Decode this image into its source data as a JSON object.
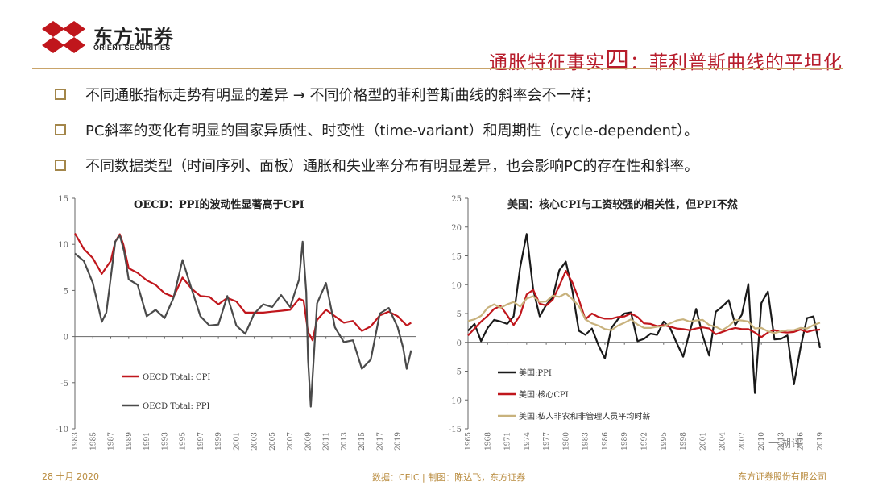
{
  "brand": {
    "name_cn": "东方证券",
    "name_en": "ORIENT SECURITIES"
  },
  "header": {
    "title_prefix": "通胀特征事实",
    "title_num": "四",
    "title_suffix": "：菲利普斯曲线的平坦化"
  },
  "bullets": [
    "不同通胀指标走势有明显的差异 → 不同价格型的菲利普斯曲线的斜率会不一样；",
    "PC斜率的变化有明显的国家异质性、时变性（time-variant）和周期性（cycle-dependent）。",
    "不同数据类型（时间序列、面板）通胀和失业率分布有明显差异，也会影响PC的存在性和斜率。"
  ],
  "colors": {
    "accent": "#b71c2b",
    "gold": "#c8b27d",
    "dark": "#333333",
    "bullet_box": "#a3864a"
  },
  "chart_data": [
    {
      "type": "line",
      "title": "OECD：PPI的波动性显著高于CPI",
      "ylim": [
        -10,
        15
      ],
      "yticks": [
        -10,
        -5,
        0,
        5,
        10,
        15
      ],
      "xlim": [
        1983,
        2021
      ],
      "xtick_labels": [
        "1983",
        "1985",
        "1987",
        "1989",
        "1991",
        "1993",
        "1995",
        "1997",
        "1999",
        "2001",
        "2003",
        "2005",
        "2007",
        "2009",
        "2011",
        "2013",
        "2015",
        "2017",
        "2019"
      ],
      "legend_position": "bottom-left",
      "series": [
        {
          "name": "OECD Total: CPI",
          "color": "#c0161c",
          "x": [
            1983,
            1984,
            1985,
            1986,
            1987,
            1987.5,
            1988,
            1988.4,
            1989,
            1990,
            1991,
            1992,
            1993,
            1994,
            1995,
            1996,
            1997,
            1998,
            1999,
            2000,
            2001,
            2002,
            2003,
            2004,
            2005,
            2006,
            2007,
            2008,
            2008.5,
            2009,
            2009.5,
            2010,
            2011,
            2012,
            2013,
            2014,
            2015,
            2016,
            2017,
            2018,
            2019,
            2020,
            2020.5
          ],
          "values": [
            11.2,
            9.5,
            8.5,
            6.8,
            8.2,
            10.3,
            11.1,
            10.0,
            7.4,
            6.9,
            6.1,
            5.6,
            4.7,
            4.3,
            6.4,
            5.2,
            4.4,
            4.3,
            3.5,
            4.2,
            3.8,
            2.6,
            2.6,
            2.6,
            2.7,
            2.8,
            2.9,
            4.1,
            3.9,
            0.5,
            -0.4,
            1.8,
            2.9,
            2.2,
            1.5,
            1.7,
            0.6,
            1.1,
            2.3,
            2.7,
            2.2,
            1.2,
            1.5
          ]
        },
        {
          "name": "OECD Total: PPI",
          "color": "#4a4a4a",
          "x": [
            1983,
            1984,
            1985,
            1986,
            1986.5,
            1987,
            1987.5,
            1988,
            1988.5,
            1989,
            1990,
            1991,
            1992,
            1993,
            1994,
            1995,
            1996,
            1997,
            1998,
            1999,
            2000,
            2001,
            2002,
            2003,
            2004,
            2005,
            2006,
            2007,
            2008,
            2008.4,
            2008.8,
            2009,
            2009.3,
            2010,
            2011,
            2012,
            2013,
            2014,
            2015,
            2016,
            2017,
            2018,
            2019,
            2019.6,
            2020,
            2020.5
          ],
          "values": [
            9.0,
            8.2,
            5.8,
            1.6,
            2.6,
            6.4,
            10.3,
            11.0,
            9.2,
            6.2,
            5.6,
            2.2,
            2.9,
            2.0,
            4.2,
            8.3,
            5.2,
            2.2,
            1.2,
            1.3,
            4.4,
            1.2,
            0.3,
            2.5,
            3.5,
            3.2,
            4.5,
            3.2,
            6.2,
            10.3,
            4.8,
            -2.5,
            -7.6,
            3.6,
            5.8,
            1.0,
            -0.6,
            -0.4,
            -3.5,
            -2.5,
            2.5,
            3.1,
            1.0,
            -1.2,
            -3.5,
            -1.5
          ]
        }
      ]
    },
    {
      "type": "line",
      "title": "美国：核心CPI与工资较强的相关性，但PPI不然",
      "ylim": [
        -15,
        25
      ],
      "yticks": [
        -15,
        -10,
        -5,
        0,
        5,
        10,
        15,
        20,
        25
      ],
      "xlim": [
        1965,
        2019
      ],
      "xtick_labels": [
        "1965",
        "1968",
        "1971",
        "1974",
        "1977",
        "1980",
        "1983",
        "1986",
        "1989",
        "1992",
        "1995",
        "1998",
        "2001",
        "2004",
        "2007",
        "2010",
        "2013",
        "2016",
        "2019"
      ],
      "legend_position": "bottom-left",
      "series": [
        {
          "name": "美国:PPI",
          "color": "#1a1a1a",
          "x": [
            1965,
            1966,
            1967,
            1968,
            1969,
            1970,
            1971,
            1972,
            1973,
            1974,
            1975,
            1976,
            1977,
            1978,
            1979,
            1980,
            1981,
            1982,
            1983,
            1984,
            1985,
            1986,
            1987,
            1988,
            1989,
            1990,
            1991,
            1992,
            1993,
            1994,
            1995,
            1996,
            1997,
            1998,
            1999,
            2000,
            2001,
            2002,
            2003,
            2004,
            2005,
            2006,
            2007,
            2008,
            2009,
            2010,
            2011,
            2012,
            2013,
            2014,
            2015,
            2016,
            2017,
            2018,
            2019
          ],
          "values": [
            2.0,
            3.2,
            0.2,
            2.5,
            3.9,
            3.6,
            3.2,
            4.5,
            13.0,
            18.8,
            9.2,
            4.5,
            6.5,
            7.8,
            12.5,
            14.0,
            9.0,
            2.0,
            1.3,
            2.4,
            -0.5,
            -2.8,
            2.5,
            4.0,
            5.0,
            5.2,
            0.2,
            0.6,
            1.5,
            1.3,
            3.6,
            2.5,
            -0.1,
            -2.5,
            1.8,
            5.8,
            1.2,
            -2.3,
            5.3,
            6.2,
            7.3,
            3.0,
            4.8,
            10.1,
            -8.8,
            6.8,
            8.8,
            0.5,
            0.6,
            1.2,
            -7.3,
            -1.0,
            4.2,
            4.5,
            -1.0
          ]
        },
        {
          "name": "美国:核心CPI",
          "color": "#c0161c",
          "x": [
            1965,
            1966,
            1967,
            1968,
            1969,
            1970,
            1971,
            1972,
            1973,
            1974,
            1975,
            1976,
            1977,
            1978,
            1979,
            1980,
            1981,
            1982,
            1983,
            1984,
            1985,
            1986,
            1987,
            1988,
            1989,
            1990,
            1991,
            1992,
            1993,
            1994,
            1995,
            1996,
            1997,
            1998,
            1999,
            2000,
            2001,
            2002,
            2003,
            2004,
            2005,
            2006,
            2007,
            2008,
            2009,
            2010,
            2011,
            2012,
            2013,
            2014,
            2015,
            2016,
            2017,
            2018,
            2019
          ],
          "values": [
            1.2,
            2.4,
            3.6,
            4.6,
            5.8,
            6.3,
            4.7,
            3.0,
            4.7,
            8.3,
            9.1,
            6.7,
            6.4,
            7.4,
            9.8,
            12.4,
            10.4,
            7.4,
            4.0,
            5.0,
            4.4,
            4.1,
            4.1,
            4.4,
            4.5,
            5.0,
            4.4,
            3.3,
            3.2,
            2.8,
            3.0,
            2.7,
            2.4,
            2.3,
            2.1,
            2.4,
            2.6,
            2.4,
            1.4,
            1.8,
            2.2,
            2.5,
            2.3,
            2.3,
            1.7,
            0.9,
            1.7,
            2.1,
            1.8,
            1.7,
            1.8,
            2.2,
            1.8,
            2.1,
            2.2
          ]
        },
        {
          "name": "美国:私人非农和非管理人员平均时薪",
          "color": "#c8b27d",
          "x": [
            1965,
            1966,
            1967,
            1968,
            1969,
            1970,
            1971,
            1972,
            1973,
            1974,
            1975,
            1976,
            1977,
            1978,
            1979,
            1980,
            1981,
            1982,
            1983,
            1984,
            1985,
            1986,
            1987,
            1988,
            1989,
            1990,
            1991,
            1992,
            1993,
            1994,
            1995,
            1996,
            1997,
            1998,
            1999,
            2000,
            2001,
            2002,
            2003,
            2004,
            2005,
            2006,
            2007,
            2008,
            2009,
            2010,
            2011,
            2012,
            2013,
            2014,
            2015,
            2016,
            2017,
            2018,
            2019
          ],
          "values": [
            3.7,
            4.0,
            4.6,
            6.0,
            6.6,
            6.0,
            6.6,
            7.0,
            6.2,
            7.6,
            8.0,
            7.0,
            7.1,
            8.1,
            7.9,
            8.5,
            7.5,
            6.3,
            4.0,
            3.3,
            2.9,
            2.3,
            2.1,
            2.9,
            3.4,
            4.0,
            3.1,
            2.5,
            2.5,
            2.7,
            2.8,
            3.3,
            3.8,
            4.0,
            3.6,
            3.8,
            3.9,
            3.0,
            2.7,
            2.1,
            2.8,
            3.9,
            3.8,
            3.6,
            2.4,
            2.5,
            1.9,
            1.6,
            1.9,
            2.1,
            2.1,
            2.5,
            2.4,
            3.0,
            3.4
          ]
        }
      ]
    }
  ],
  "footer": {
    "date": "28 十月 2020",
    "source": "数据：CEIC | 制图：陈达飞，东方证券",
    "company": "东方证券股份有限公司"
  },
  "watermark": "一湖评"
}
